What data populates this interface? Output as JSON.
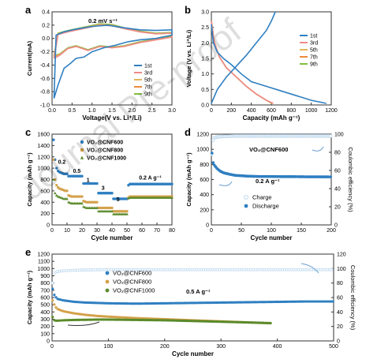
{
  "figure": {
    "watermark": "Journal Pre-proof",
    "panels": [
      "a",
      "b",
      "c",
      "d",
      "e"
    ]
  },
  "colors": {
    "c1": "#2f7fc1",
    "c3": "#f08a8a",
    "c5": "#e0b75a",
    "c7": "#ee8a3a",
    "c9": "#7fbf3f",
    "cnf600": "#2f7fc1",
    "cnf800": "#d4a14a",
    "cnf1000": "#5a8a2a",
    "ce_open": "#b9d6ee"
  },
  "chart_data": [
    {
      "id": "a",
      "type": "line",
      "annotation": "0.2 mV s⁻¹",
      "xlabel": "Voltage(V vs. Li⁺/Li)",
      "ylabel": "Current(mA)",
      "xlim": [
        0,
        3.0
      ],
      "ylim": [
        -1.0,
        0.4
      ],
      "xticks": [
        "0.0",
        "0.5",
        "1.0",
        "1.5",
        "2.0",
        "2.5",
        "3.0"
      ],
      "yticks": [
        "-1.0",
        "-0.8",
        "-0.6",
        "-0.4",
        "-0.2",
        "0.0",
        "0.2",
        "0.4"
      ],
      "series": [
        {
          "name": "1st",
          "color": "c1",
          "x": [
            0.05,
            0.1,
            0.3,
            0.6,
            1.0,
            1.4,
            1.8,
            2.2,
            2.6,
            3.0,
            3.0,
            2.6,
            2.2,
            1.9,
            1.6,
            1.3,
            1.0,
            0.8,
            0.6,
            0.45,
            0.3,
            0.15,
            0.05
          ],
          "y": [
            -0.9,
            0.05,
            0.1,
            0.14,
            0.18,
            0.2,
            0.16,
            0.13,
            0.12,
            0.13,
            0.05,
            0.0,
            -0.02,
            -0.05,
            -0.1,
            -0.14,
            -0.2,
            -0.28,
            -0.3,
            -0.38,
            -0.45,
            -0.7,
            -0.9
          ]
        },
        {
          "name": "3rd",
          "color": "c3",
          "x": [
            0.05,
            0.15,
            0.4,
            0.8,
            1.2,
            1.5,
            1.8,
            2.2,
            2.6,
            3.0,
            3.0,
            2.6,
            2.2,
            1.8,
            1.5,
            1.2,
            0.9,
            0.6,
            0.4,
            0.2,
            0.05
          ],
          "y": [
            -0.3,
            0.06,
            0.1,
            0.15,
            0.2,
            0.19,
            0.15,
            0.1,
            0.07,
            0.08,
            0.02,
            -0.02,
            -0.06,
            -0.12,
            -0.14,
            -0.12,
            -0.18,
            -0.12,
            -0.15,
            -0.25,
            -0.3
          ]
        },
        {
          "name": "5th",
          "color": "c5",
          "x": [
            0.05,
            0.15,
            0.4,
            0.8,
            1.2,
            1.5,
            1.8,
            2.2,
            2.6,
            3.0,
            3.0,
            2.6,
            2.2,
            1.8,
            1.5,
            1.2,
            0.9,
            0.6,
            0.4,
            0.2,
            0.05
          ],
          "y": [
            -0.28,
            0.07,
            0.11,
            0.16,
            0.21,
            0.2,
            0.15,
            0.1,
            0.07,
            0.08,
            0.02,
            -0.02,
            -0.06,
            -0.12,
            -0.14,
            -0.12,
            -0.18,
            -0.12,
            -0.15,
            -0.24,
            -0.28
          ]
        },
        {
          "name": "7th",
          "color": "c7",
          "x": [
            0.05,
            0.15,
            0.4,
            0.8,
            1.2,
            1.5,
            1.8,
            2.2,
            2.6,
            3.0,
            3.0,
            2.6,
            2.2,
            1.8,
            1.5,
            1.2,
            0.9,
            0.6,
            0.4,
            0.2,
            0.05
          ],
          "y": [
            -0.27,
            0.07,
            0.11,
            0.16,
            0.21,
            0.2,
            0.15,
            0.1,
            0.07,
            0.08,
            0.02,
            -0.02,
            -0.06,
            -0.12,
            -0.14,
            -0.12,
            -0.18,
            -0.12,
            -0.15,
            -0.24,
            -0.27
          ]
        },
        {
          "name": "9th",
          "color": "c9",
          "x": [
            0.05,
            0.15,
            0.4,
            0.8,
            1.2,
            1.5,
            1.8,
            2.2,
            2.6,
            3.0,
            3.0,
            2.6,
            2.2,
            1.8,
            1.5,
            1.2,
            0.9,
            0.6,
            0.4,
            0.2,
            0.05
          ],
          "y": [
            -0.26,
            0.08,
            0.12,
            0.17,
            0.22,
            0.21,
            0.16,
            0.11,
            0.08,
            0.09,
            0.03,
            -0.01,
            -0.05,
            -0.11,
            -0.13,
            -0.11,
            -0.17,
            -0.11,
            -0.14,
            -0.23,
            -0.26
          ]
        }
      ],
      "legend": "bottom-right"
    },
    {
      "id": "b",
      "type": "line",
      "xlabel": "Capacity (mAh g⁻¹)",
      "ylabel": "Voltage (V vs. Li⁺/Li)",
      "xlim": [
        0,
        1200
      ],
      "ylim": [
        0,
        3.0
      ],
      "xticks": [
        "0",
        "200",
        "400",
        "600",
        "800",
        "1000",
        "1200"
      ],
      "yticks": [
        "0.0",
        "0.5",
        "1.0",
        "1.5",
        "2.0",
        "2.5",
        "3.0"
      ],
      "series": [
        {
          "name": "1st",
          "color": "c1",
          "x": [
            0,
            20,
            60,
            120,
            200,
            300,
            400,
            550,
            700,
            850,
            1000,
            1150
          ],
          "y": [
            2.6,
            2.0,
            1.7,
            1.5,
            1.3,
            1.0,
            0.75,
            0.6,
            0.45,
            0.3,
            0.15,
            0.05
          ]
        },
        {
          "name": "1st charge",
          "color": "c1",
          "legend": false,
          "x": [
            0,
            60,
            150,
            250,
            350,
            450,
            550,
            600,
            640
          ],
          "y": [
            0.05,
            0.5,
            0.9,
            1.25,
            1.6,
            2.0,
            2.4,
            2.7,
            3.0
          ]
        },
        {
          "name": "3rd",
          "color": "c3",
          "x": [
            0,
            30,
            80,
            150,
            250,
            350,
            450,
            550,
            620
          ],
          "y": [
            2.7,
            2.0,
            1.55,
            1.2,
            0.9,
            0.6,
            0.35,
            0.15,
            0.05
          ]
        },
        {
          "name": "5th",
          "color": "c5",
          "x": [
            0,
            30,
            80,
            150,
            250,
            350,
            450,
            550,
            615
          ],
          "y": [
            2.7,
            2.0,
            1.55,
            1.2,
            0.9,
            0.6,
            0.35,
            0.15,
            0.05
          ]
        },
        {
          "name": "7th",
          "color": "c7",
          "x": [
            0,
            30,
            80,
            150,
            250,
            350,
            450,
            550,
            610
          ],
          "y": [
            2.7,
            2.0,
            1.55,
            1.2,
            0.9,
            0.6,
            0.35,
            0.15,
            0.05
          ]
        },
        {
          "name": "9th",
          "color": "c9",
          "x": [
            0,
            30,
            80,
            150,
            250,
            350,
            450,
            550,
            605
          ],
          "y": [
            2.7,
            2.0,
            1.55,
            1.2,
            0.9,
            0.6,
            0.35,
            0.15,
            0.05
          ]
        }
      ],
      "legend": "top-right"
    },
    {
      "id": "c",
      "type": "scatter",
      "xlabel": "Cycle number",
      "ylabel": "Capacity (mAh g⁻¹)",
      "xlim": [
        0,
        80
      ],
      "ylim": [
        0,
        1600
      ],
      "xticks": [
        "0",
        "10",
        "20",
        "30",
        "40",
        "50",
        "60",
        "70",
        "80"
      ],
      "yticks": [
        "0",
        "200",
        "400",
        "600",
        "800",
        "1000",
        "1200",
        "1400",
        "1600"
      ],
      "rate_labels": [
        "0.2",
        "0.5",
        "1",
        "3",
        "5",
        "0.2  A g⁻¹"
      ],
      "series": [
        {
          "name": "VO₂@CNF600",
          "color": "cnf600",
          "x_start": 1,
          "y": [
            1500,
            1150,
            1000,
            950,
            930,
            920,
            910,
            900,
            900,
            900,
            860,
            860,
            860,
            860,
            860,
            860,
            860,
            860,
            860,
            860,
            730,
            730,
            730,
            730,
            730,
            730,
            730,
            730,
            730,
            730,
            560,
            560,
            560,
            560,
            560,
            560,
            560,
            560,
            560,
            560,
            460,
            460,
            460,
            460,
            460,
            460,
            460,
            460,
            460,
            460,
            700,
            720,
            720,
            720,
            720,
            720,
            720,
            720,
            720,
            720,
            720,
            720,
            720,
            720,
            720,
            720,
            720,
            720,
            720,
            720,
            720,
            720,
            720,
            720,
            720,
            720,
            720,
            720,
            720,
            720
          ]
        },
        {
          "name": "VO₂@CNF800",
          "color": "cnf800",
          "x_start": 1,
          "y": [
            1150,
            800,
            700,
            660,
            640,
            630,
            620,
            610,
            600,
            600,
            520,
            510,
            500,
            500,
            500,
            500,
            500,
            500,
            500,
            500,
            420,
            410,
            400,
            400,
            400,
            400,
            400,
            400,
            400,
            400,
            300,
            300,
            300,
            300,
            300,
            300,
            300,
            300,
            300,
            300,
            240,
            240,
            240,
            240,
            240,
            240,
            240,
            240,
            240,
            240,
            480,
            500,
            500,
            500,
            500,
            500,
            500,
            500,
            500,
            500,
            500,
            500,
            500,
            500,
            500,
            500,
            500,
            500,
            500,
            500,
            500,
            500,
            500,
            500,
            500,
            500,
            500,
            500,
            500,
            500
          ]
        },
        {
          "name": "VO₂@CNF1000",
          "color": "cnf1000",
          "x_start": 1,
          "y": [
            800,
            560,
            520,
            500,
            490,
            480,
            470,
            460,
            460,
            460,
            400,
            390,
            380,
            380,
            380,
            380,
            380,
            380,
            380,
            380,
            320,
            310,
            300,
            300,
            300,
            300,
            300,
            300,
            300,
            300,
            240,
            240,
            240,
            240,
            240,
            240,
            240,
            240,
            240,
            240,
            190,
            190,
            190,
            190,
            190,
            190,
            190,
            190,
            190,
            190,
            470,
            480,
            480,
            480,
            480,
            480,
            480,
            480,
            480,
            480,
            480,
            480,
            480,
            480,
            480,
            480,
            480,
            480,
            480,
            480,
            480,
            480,
            480,
            480,
            480,
            480,
            480,
            480,
            480,
            480
          ]
        }
      ],
      "legend": "top-center"
    },
    {
      "id": "d",
      "type": "scatter",
      "annotation": "VO₂@CNF600",
      "rate_label": "0.2 A g⁻¹",
      "xlabel": "Cycle number",
      "ylabel": "Capacity (mAh g⁻¹)",
      "ylabel2": "Coulombic efficiency (%)",
      "xlim": [
        0,
        200
      ],
      "ylim": [
        0,
        1200
      ],
      "ylim2": [
        0,
        100
      ],
      "xticks": [
        "0",
        "50",
        "100",
        "150",
        "200"
      ],
      "yticks": [
        "0",
        "200",
        "400",
        "600",
        "800",
        "1000",
        "1200"
      ],
      "yticks2": [
        "0",
        "20",
        "40",
        "60",
        "80",
        "100"
      ],
      "series": [
        {
          "name": "Charge",
          "color": "ce_open",
          "marker": "open",
          "axis": "right",
          "x": [
            1,
            2,
            5,
            10,
            20,
            40,
            60,
            80,
            100,
            120,
            140,
            160,
            180,
            200
          ],
          "y": [
            78,
            92,
            96,
            97,
            97.5,
            98,
            98,
            98,
            98,
            98,
            98,
            98,
            98,
            98
          ]
        },
        {
          "name": "Discharge",
          "color": "cnf600",
          "marker": "filled",
          "axis": "left",
          "x": [
            1,
            2,
            5,
            10,
            15,
            20,
            30,
            40,
            60,
            80,
            100,
            120,
            140,
            160,
            180,
            200
          ],
          "y": [
            950,
            840,
            790,
            740,
            710,
            690,
            670,
            655,
            645,
            640,
            640,
            638,
            638,
            636,
            636,
            635
          ]
        }
      ],
      "legend": "center"
    },
    {
      "id": "e",
      "type": "scatter",
      "rate_label": "0.5 A g⁻¹",
      "xlabel": "Cycle number",
      "ylabel": "Capacity (mAh g⁻¹)",
      "ylabel2": "Coulombic efficiency (%)",
      "xlim": [
        0,
        500
      ],
      "ylim": [
        0,
        1200
      ],
      "ylim2": [
        0,
        120
      ],
      "xticks": [
        "0",
        "100",
        "200",
        "300",
        "400",
        "500"
      ],
      "yticks": [
        "0",
        "100",
        "200",
        "300",
        "400",
        "500",
        "600",
        "700",
        "800",
        "900",
        "1000",
        "1100",
        "1200"
      ],
      "yticks2": [
        "0",
        "20",
        "40",
        "60",
        "80",
        "100",
        "120"
      ],
      "series": [
        {
          "name": "VO₂@CNF600",
          "color": "cnf600",
          "axis": "left",
          "x": [
            1,
            3,
            6,
            10,
            20,
            40,
            60,
            80,
            100,
            150,
            200,
            250,
            300,
            350,
            400,
            450,
            500
          ],
          "y": [
            720,
            650,
            610,
            580,
            560,
            540,
            530,
            525,
            520,
            515,
            520,
            525,
            530,
            535,
            540,
            545,
            545
          ]
        },
        {
          "name": "VO₂@CNF800",
          "color": "cnf800",
          "axis": "left",
          "x": [
            1,
            3,
            6,
            10,
            20,
            40,
            60,
            80,
            100,
            150,
            200,
            250,
            300,
            350,
            390
          ],
          "y": [
            560,
            520,
            470,
            440,
            410,
            380,
            360,
            345,
            335,
            315,
            300,
            285,
            270,
            255,
            245
          ]
        },
        {
          "name": "VO₂@CNF1000",
          "color": "cnf1000",
          "axis": "left",
          "x": [
            1,
            3,
            6,
            10,
            20,
            40,
            60,
            80,
            100,
            150,
            200,
            250,
            300,
            350,
            390
          ],
          "y": [
            330,
            290,
            280,
            280,
            285,
            290,
            292,
            295,
            295,
            290,
            285,
            275,
            265,
            255,
            245
          ]
        },
        {
          "name": "CE",
          "color": "ce_open",
          "marker": "open",
          "axis": "right",
          "legend": false,
          "x": [
            1,
            3,
            6,
            10,
            20,
            50,
            100,
            150,
            200,
            250,
            300,
            350,
            400,
            450,
            500
          ],
          "y": [
            80,
            92,
            95,
            96,
            97,
            98,
            98.5,
            98.5,
            98.5,
            98.5,
            98.5,
            98.5,
            98.5,
            98.5,
            98.5
          ]
        }
      ],
      "legend": "center-left"
    }
  ]
}
